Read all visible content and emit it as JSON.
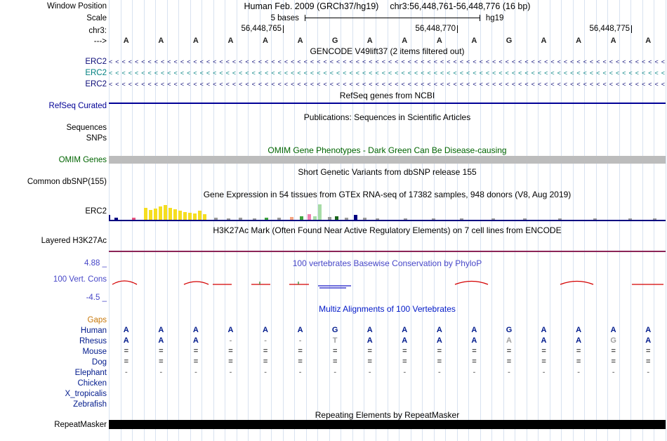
{
  "colors": {
    "grid": "#d8e2f0",
    "navy": "#000080",
    "refseq": "#000096",
    "omim_green": "#006400",
    "omim_bar": "#bcbcbc",
    "phylop": "#4747c8",
    "multiz": "#0018c8",
    "species": "#001a8c",
    "muted": "#a0a0a0",
    "gaps": "#c8780a",
    "h3k27ac": "#8b2457"
  },
  "header": {
    "window_position_label": "Window Position",
    "assembly": "Human Feb. 2009 (GRCh37/hg19)",
    "position": "chr3:56,448,761-56,448,776 (16 bp)",
    "scale_label": "Scale",
    "scale_value": "5 bases",
    "genome": "hg19",
    "chrom_label": "chr3:",
    "strand_label": "--->",
    "ruler_ticks": [
      "56,448,765",
      "56,448,770",
      "56,448,775"
    ],
    "bases": [
      "A",
      "A",
      "A",
      "A",
      "A",
      "A",
      "G",
      "A",
      "A",
      "A",
      "A",
      "G",
      "A",
      "A",
      "A",
      "A"
    ]
  },
  "tracks": {
    "gencode": {
      "title": "GENCODE V49lift37 (2 items filtered out)",
      "items": [
        {
          "label": "ERC2",
          "color": "#0c0c78"
        },
        {
          "label": "ERC2",
          "color": "#008080"
        },
        {
          "label": "ERC2",
          "color": "#0c0c78"
        }
      ]
    },
    "refseq": {
      "title": "RefSeq genes from NCBI",
      "label": "RefSeq Curated"
    },
    "publications": {
      "title": "Publications: Sequences in Scientific Articles",
      "sequences_label": "Sequences",
      "snps_label": "SNPs"
    },
    "omim": {
      "title": "OMIM Gene Phenotypes - Dark Green Can Be Disease-causing",
      "label": "OMIM Genes"
    },
    "dbsnp": {
      "title": "Short Genetic Variants from dbSNP release 155",
      "label": "Common dbSNP(155)"
    },
    "gtex": {
      "title": "Gene Expression in 54 tissues from GTEx RNA-seq of 17382 samples, 948 donors (V8, Aug 2019)",
      "label": "ERC2",
      "bars": [
        [
          8,
          3,
          "#000080"
        ],
        [
          33,
          3,
          "#e75480"
        ],
        [
          50,
          17,
          "#f5de21"
        ],
        [
          57,
          14,
          "#f5de21"
        ],
        [
          64,
          16,
          "#f5de21"
        ],
        [
          71,
          19,
          "#f5de21"
        ],
        [
          78,
          21,
          "#f5de21"
        ],
        [
          85,
          17,
          "#f5de21"
        ],
        [
          92,
          15,
          "#f5de21"
        ],
        [
          99,
          13,
          "#f5de21"
        ],
        [
          106,
          11,
          "#f5de21"
        ],
        [
          113,
          10,
          "#f5de21"
        ],
        [
          120,
          9,
          "#f5de21"
        ],
        [
          127,
          13,
          "#f5de21"
        ],
        [
          134,
          8,
          "#f5de21"
        ],
        [
          150,
          3,
          "#999999"
        ],
        [
          168,
          2,
          "#999999"
        ],
        [
          185,
          3,
          "#999999"
        ],
        [
          205,
          2,
          "#999999"
        ],
        [
          222,
          3,
          "#3fa33f"
        ],
        [
          240,
          3,
          "#999999"
        ],
        [
          258,
          4,
          "#f4a582"
        ],
        [
          272,
          5,
          "#3fa33f"
        ],
        [
          283,
          8,
          "#f080b0"
        ],
        [
          291,
          5,
          "#a6dca6"
        ],
        [
          298,
          22,
          "#a6dca6"
        ],
        [
          312,
          4,
          "#999999"
        ],
        [
          322,
          5,
          "#1a661a"
        ],
        [
          336,
          3,
          "#999999"
        ],
        [
          349,
          7,
          "#000080"
        ],
        [
          362,
          3,
          "#999999"
        ],
        [
          380,
          2,
          "#999999"
        ],
        [
          420,
          2,
          "#999999"
        ],
        [
          460,
          2,
          "#999999"
        ],
        [
          500,
          2,
          "#999999"
        ],
        [
          545,
          2,
          "#999999"
        ],
        [
          590,
          2,
          "#999999"
        ],
        [
          640,
          2,
          "#999999"
        ],
        [
          690,
          2,
          "#999999"
        ],
        [
          740,
          2,
          "#999999"
        ],
        [
          775,
          2,
          "#999999"
        ]
      ]
    },
    "h3k27ac": {
      "title": "H3K27Ac Mark (Often Found Near Active Regulatory Elements) on 7 cell lines from ENCODE",
      "label": "Layered H3K27Ac"
    },
    "phylop": {
      "title": "100 vertebrates Basewise Conservation by PhyloP",
      "label": "100 Vert. Cons",
      "max_label": "4.88 _",
      "min_label": "-4.5 _"
    },
    "multiz": {
      "title": "Multiz Alignments of 100 Vertebrates",
      "rows": [
        {
          "label": "Gaps",
          "label_color": "#c8780a",
          "cells": [
            "",
            "",
            "",
            "",
            "",
            "",
            "",
            "",
            "",
            "",
            "",
            "",
            "",
            "",
            "",
            ""
          ]
        },
        {
          "label": "Human",
          "label_color": "#001a8c",
          "cells": [
            "A",
            "A",
            "A",
            "A",
            "A",
            "A",
            "G",
            "A",
            "A",
            "A",
            "A",
            "G",
            "A",
            "A",
            "A",
            "A"
          ]
        },
        {
          "label": "Rhesus",
          "label_color": "#001a8c",
          "cells": [
            "A",
            "A",
            "A",
            "-",
            "-",
            "-",
            "T",
            "A",
            "A",
            "A",
            "A",
            "A",
            "A",
            "A",
            "G",
            "A"
          ],
          "muted": [
            3,
            4,
            5,
            6,
            11,
            14
          ]
        },
        {
          "label": "Mouse",
          "label_color": "#001a8c",
          "cell_color": "#555555",
          "cells": [
            "=",
            "=",
            "=",
            "=",
            "=",
            "=",
            "=",
            "=",
            "=",
            "=",
            "=",
            "=",
            "=",
            "=",
            "=",
            "="
          ]
        },
        {
          "label": "Dog",
          "label_color": "#001a8c",
          "cell_color": "#555555",
          "cells": [
            "=",
            "=",
            "=",
            "=",
            "=",
            "=",
            "=",
            "=",
            "=",
            "=",
            "=",
            "=",
            "=",
            "=",
            "=",
            "="
          ]
        },
        {
          "label": "Elephant",
          "label_color": "#001a8c",
          "cell_color": "#8a8a8a",
          "cells": [
            "-",
            "-",
            "-",
            "-",
            "-",
            "-",
            "-",
            "-",
            "-",
            "-",
            "-",
            "-",
            "-",
            "-",
            "-",
            "-"
          ]
        },
        {
          "label": "Chicken",
          "label_color": "#001a8c",
          "cells": [
            "",
            "",
            "",
            "",
            "",
            "",
            "",
            "",
            "",
            "",
            "",
            "",
            "",
            "",
            "",
            ""
          ]
        },
        {
          "label": "X_tropicalis",
          "label_color": "#001a8c",
          "cells": [
            "",
            "",
            "",
            "",
            "",
            "",
            "",
            "",
            "",
            "",
            "",
            "",
            "",
            "",
            "",
            ""
          ]
        },
        {
          "label": "Zebrafish",
          "label_color": "#001a8c",
          "cells": [
            "",
            "",
            "",
            "",
            "",
            "",
            "",
            "",
            "",
            "",
            "",
            "",
            "",
            "",
            "",
            ""
          ]
        }
      ]
    },
    "repeatmasker": {
      "title": "Repeating Elements by RepeatMasker",
      "label": "RepeatMasker"
    }
  }
}
